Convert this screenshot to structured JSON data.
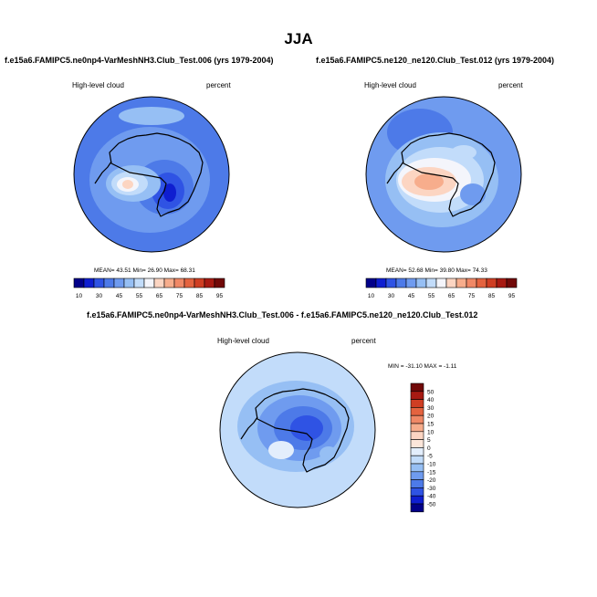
{
  "figure": {
    "season": "JJA"
  },
  "colors": {
    "abs_scale": [
      "#020089",
      "#0f1ed0",
      "#2f53e4",
      "#4d7ae8",
      "#6f9bef",
      "#96bff4",
      "#c2dcfa",
      "#f4f5fb",
      "#fcd5c2",
      "#f7ad8c",
      "#f08866",
      "#e4633f",
      "#cf3e23",
      "#a81a12",
      "#710908"
    ],
    "diff_scale": [
      "#020089",
      "#0f1ed0",
      "#2f53e4",
      "#4d7ae8",
      "#6f9bef",
      "#96bff4",
      "#c2dcfa",
      "#e3eefc",
      "#fce6da",
      "#fcd5c2",
      "#f7ad8c",
      "#f08866",
      "#e4633f",
      "#cf3e23",
      "#a81a12",
      "#710908"
    ],
    "land_outline": "#000000"
  },
  "chart_data": [
    {
      "type": "heatmap",
      "id": "left",
      "title": "f.e15a6.FAMIPC5.ne0np4-VarMeshNH3.Club_Test.006 (yrs 1979-2004)",
      "variable": "High-level cloud",
      "units": "percent",
      "stats": {
        "mean_label": "MEAN=",
        "mean": "43.51",
        "min_label": "Min=",
        "min": "26.90",
        "max_label": "Max=",
        "max": "68.31"
      },
      "colorbar_ticks": [
        "10",
        "30",
        "45",
        "55",
        "65",
        "75",
        "85",
        "95"
      ],
      "region": "South polar stereographic (Antarctica)"
    },
    {
      "type": "heatmap",
      "id": "right",
      "title": "f.e15a6.FAMIPC5.ne120_ne120.Club_Test.012 (yrs 1979-2004)",
      "variable": "High-level cloud",
      "units": "percent",
      "stats": {
        "mean_label": "MEAN=",
        "mean": "52.68",
        "min_label": "Min=",
        "min": "39.80",
        "max_label": "Max=",
        "max": "74.33"
      },
      "colorbar_ticks": [
        "10",
        "30",
        "45",
        "55",
        "65",
        "75",
        "85",
        "95"
      ],
      "region": "South polar stereographic (Antarctica)"
    },
    {
      "type": "heatmap",
      "id": "diff",
      "title": "f.e15a6.FAMIPC5.ne0np4-VarMeshNH3.Club_Test.006 - f.e15a6.FAMIPC5.ne120_ne120.Club_Test.012",
      "variable": "High-level cloud",
      "units": "percent",
      "stats_text": "MIN = -31.10 MAX =  -1.11",
      "colorbar_ticks": [
        "50",
        "40",
        "30",
        "20",
        "15",
        "10",
        "5",
        "0",
        "-5",
        "-10",
        "-15",
        "-20",
        "-30",
        "-40",
        "-50"
      ],
      "region": "South polar stereographic (Antarctica)"
    }
  ]
}
